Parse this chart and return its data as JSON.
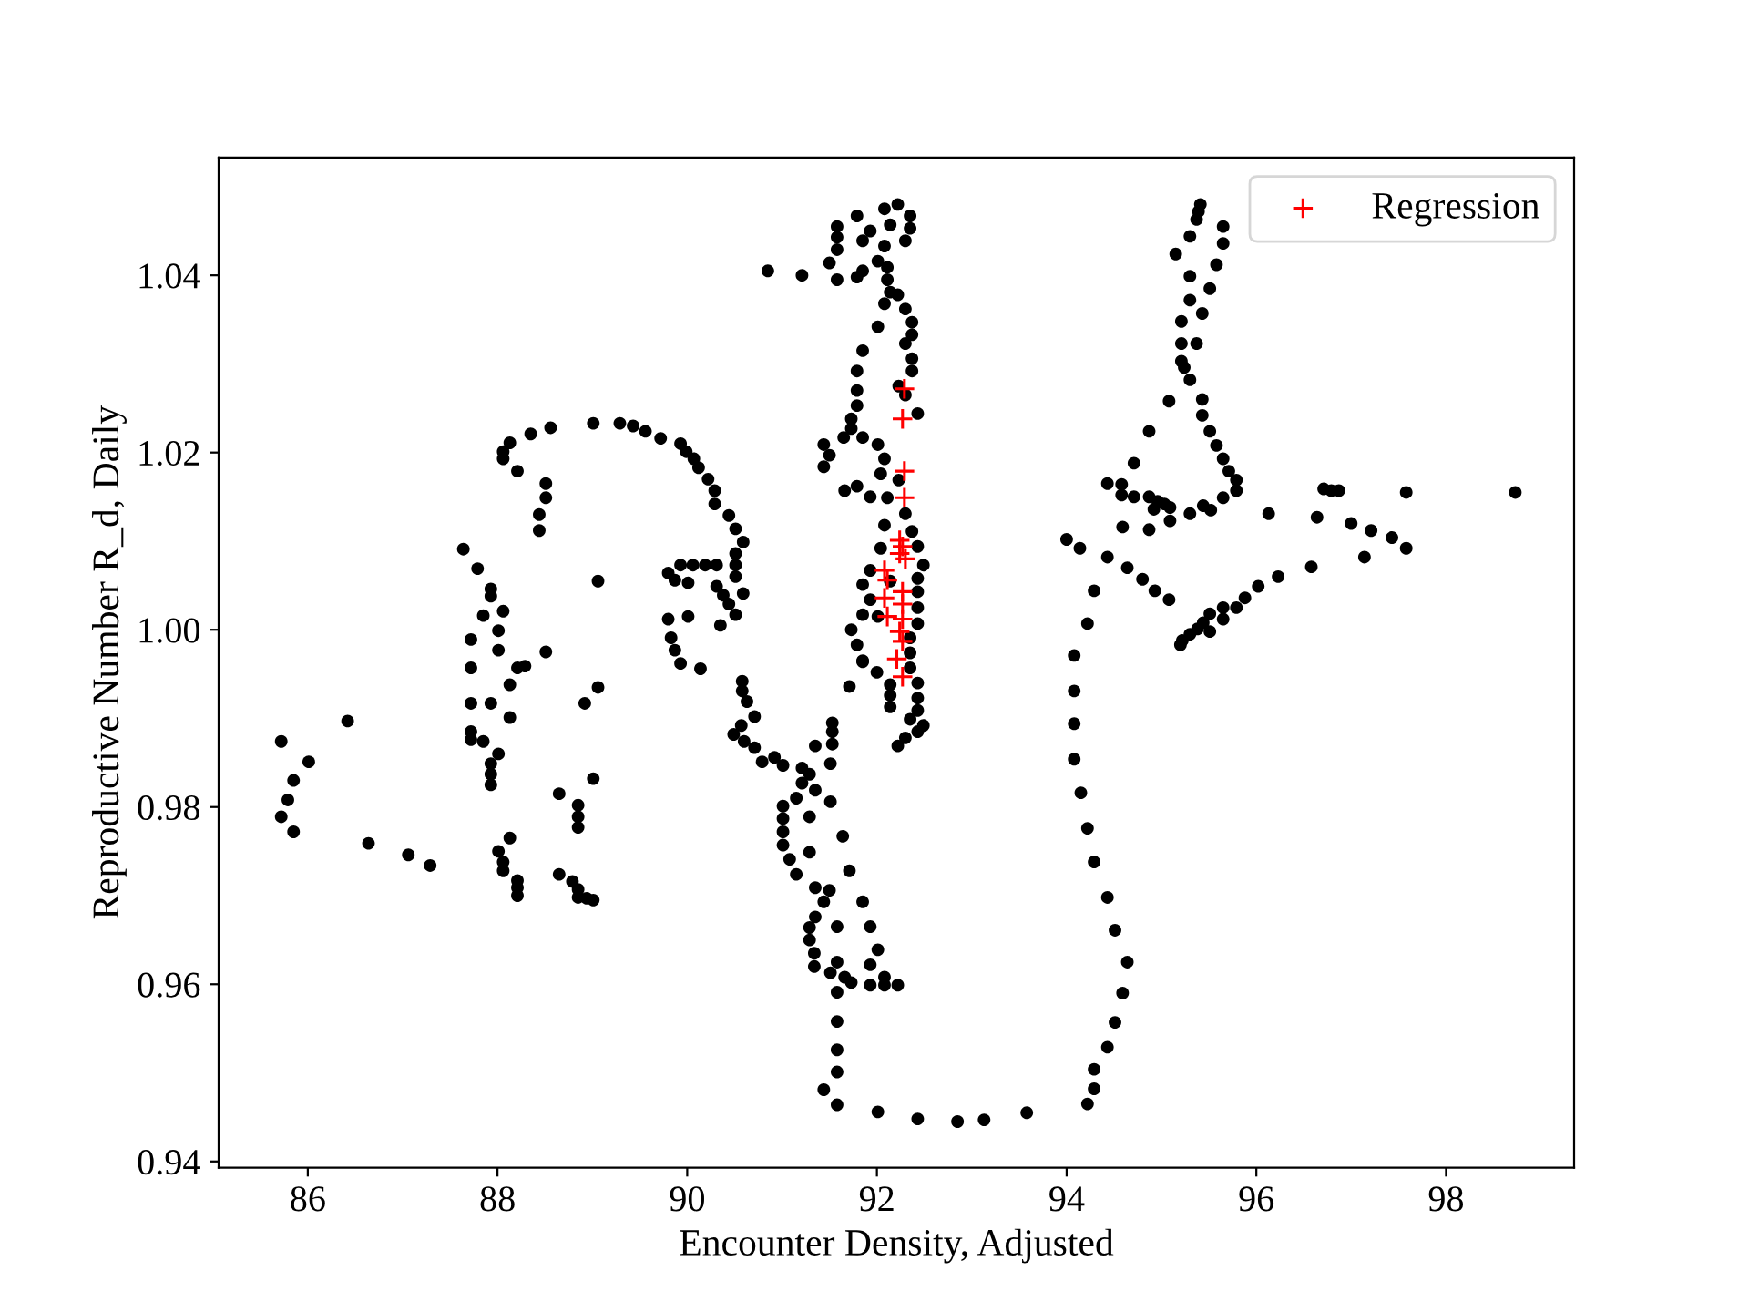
{
  "chart_data": {
    "type": "scatter",
    "xlabel": "Encounter Density, Adjusted",
    "ylabel": "Reproductive Number R_d, Daily",
    "xlim": [
      85.06,
      99.35
    ],
    "ylim": [
      0.9393,
      1.0533
    ],
    "xticks": [
      86,
      88,
      90,
      92,
      94,
      96,
      98
    ],
    "yticks": [
      0.94,
      0.96,
      0.98,
      {
        "value": 1.0,
        "label": "1.00"
      },
      1.02,
      1.04
    ],
    "legend": "top right",
    "series": [
      {
        "color": "#000000",
        "marker": "circle",
        "x": [
          87.64,
          87.79,
          87.93,
          87.93,
          87.85,
          88.06,
          88.01,
          87.72,
          88.01,
          88.51,
          87.72,
          88.21,
          88.29,
          89.06,
          88.06,
          88.06,
          88.13,
          88.21,
          88.35,
          88.56,
          89.01,
          89.29,
          89.43,
          89.56,
          89.72,
          88.51,
          88.51,
          88.44,
          88.44,
          89.8,
          89.8,
          89.83,
          89.93,
          89.99,
          90.07,
          90.12,
          90.22,
          90.29,
          90.29,
          90.44,
          90.51,
          90.59,
          90.51,
          90.51,
          90.51,
          90.59,
          89.93,
          90.06,
          90.19,
          90.31,
          89.87,
          90.01,
          90.31,
          90.38,
          90.44,
          90.51,
          90.35,
          90.01,
          89.87,
          89.93,
          90.14,
          90.58,
          90.58,
          90.63,
          90.71,
          90.57,
          90.49,
          90.6,
          90.71,
          90.79,
          90.92,
          91.01,
          91.21,
          91.29,
          91.21,
          91.35,
          91.15,
          91.01,
          91.01,
          91.01,
          91.01,
          91.08,
          91.15,
          91.35,
          91.5,
          91.44,
          91.35,
          91.29,
          91.29,
          91.34,
          91.34,
          91.51,
          91.58,
          91.66,
          91.73,
          91.58,
          91.58,
          91.58,
          91.58,
          91.44,
          91.58,
          92.01,
          92.43,
          92.85,
          93.13,
          91.53,
          91.53,
          91.53,
          91.35,
          91.51,
          91.51,
          91.29,
          91.64,
          91.29,
          91.71,
          91.85,
          91.58,
          91.93,
          92.01,
          91.93,
          91.93,
          92.08,
          92.08,
          92.22,
          91.71,
          91.85,
          92.0,
          92.14,
          92.14,
          92.14,
          92.35,
          92.43,
          92.43,
          92.43,
          92.35,
          92.49,
          92.43,
          92.3,
          92.22,
          90.85,
          91.21,
          91.58,
          91.58,
          91.58,
          91.58,
          91.5,
          91.79,
          91.93,
          91.85,
          92.08,
          92.22,
          92.35,
          92.35,
          92.3,
          92.14,
          92.08,
          92.01,
          92.11,
          91.85,
          91.79,
          92.11,
          92.14,
          92.22,
          92.08,
          92.3,
          92.37,
          92.01,
          92.37,
          91.85,
          92.3,
          92.37,
          91.79,
          92.37,
          91.79,
          92.23,
          92.3,
          92.43,
          91.79,
          91.73,
          91.73,
          91.65,
          91.85,
          92.01,
          91.44,
          91.5,
          91.44,
          92.08,
          92.04,
          92.23,
          91.66,
          91.79,
          91.93,
          92.11,
          92.3,
          92.08,
          92.37,
          92.43,
          92.04,
          92.49,
          91.93,
          92.14,
          92.43,
          91.85,
          92.43,
          91.93,
          92.43,
          91.85,
          92.01,
          92.43,
          91.73,
          92.35,
          91.79,
          92.35,
          91.85,
          95.41,
          95.39,
          95.37,
          95.65,
          95.65,
          95.3,
          95.15,
          95.58,
          95.3,
          95.51,
          95.3,
          95.43,
          95.21,
          95.21,
          95.37,
          95.21,
          95.24,
          95.3,
          95.08,
          95.43,
          95.43,
          94.87,
          95.51,
          95.58,
          95.65,
          95.71,
          95.79,
          95.79,
          95.65,
          94.71,
          94.43,
          94.58,
          94.58,
          94.71,
          94.87,
          94.96,
          95.03,
          94.92,
          95.09,
          95.44,
          95.52,
          95.3,
          95.09,
          94.87,
          94.59,
          96.13,
          96.71,
          96.79,
          96.87,
          97.58,
          98.73,
          96.64,
          97.0,
          97.21,
          97.43,
          97.58,
          97.14,
          96.58,
          96.23,
          96.02,
          95.88,
          95.79,
          95.65,
          95.65,
          95.51,
          95.44,
          95.38,
          95.3,
          95.22,
          95.2,
          95.51,
          94.0,
          94.14,
          94.43,
          94.64,
          94.8,
          94.93,
          95.08,
          94.29,
          94.22,
          94.08,
          94.08,
          94.08,
          94.08,
          94.15,
          94.22,
          94.29,
          94.43,
          94.51,
          94.64,
          94.59,
          94.51,
          94.43,
          94.29,
          94.29,
          94.22,
          93.58,
          85.72,
          86.01,
          85.85,
          85.79,
          85.72,
          85.85,
          86.42,
          86.64,
          87.06,
          87.29,
          87.72,
          87.93,
          87.72,
          87.72,
          87.85,
          88.01,
          87.93,
          87.93,
          87.93,
          88.13,
          88.13,
          88.92,
          89.06,
          89.01,
          88.65,
          88.85,
          88.85,
          88.85,
          88.13,
          88.01,
          88.06,
          88.06,
          88.21,
          88.21,
          88.21,
          88.65,
          88.79,
          88.85,
          88.85,
          88.94,
          89.01
        ],
        "values": [
          1.0091,
          1.0069,
          1.0046,
          1.0038,
          1.0016,
          1.0021,
          0.9999,
          0.9989,
          0.9977,
          0.9975,
          0.9957,
          0.9957,
          0.9959,
          1.0055,
          1.0201,
          1.0193,
          1.0211,
          1.0179,
          1.0221,
          1.0228,
          1.0233,
          1.0233,
          1.023,
          1.0224,
          1.0216,
          1.0165,
          1.0149,
          1.013,
          1.0112,
          1.0064,
          1.0012,
          0.9991,
          1.021,
          1.0201,
          1.0193,
          1.0183,
          1.017,
          1.0157,
          1.0142,
          1.0129,
          1.0114,
          1.0099,
          1.0086,
          1.0073,
          1.006,
          1.0041,
          1.0073,
          1.0073,
          1.0073,
          1.0073,
          1.0056,
          1.0053,
          1.0049,
          1.0039,
          1.0029,
          1.0017,
          1.0005,
          1.0015,
          0.9977,
          0.9962,
          0.9956,
          0.9942,
          0.9931,
          0.9919,
          0.9902,
          0.9892,
          0.9882,
          0.9874,
          0.9867,
          0.9851,
          0.9856,
          0.9847,
          0.9844,
          0.9837,
          0.9827,
          0.9819,
          0.981,
          0.9801,
          0.9787,
          0.9772,
          0.9757,
          0.9741,
          0.9724,
          0.9709,
          0.9706,
          0.9693,
          0.9676,
          0.9664,
          0.965,
          0.9635,
          0.962,
          0.9613,
          0.9625,
          0.9608,
          0.9602,
          0.9591,
          0.9558,
          0.9526,
          0.9501,
          0.9481,
          0.9464,
          0.9456,
          0.9448,
          0.9445,
          0.9447,
          0.9895,
          0.9885,
          0.9871,
          0.9869,
          0.9849,
          0.9806,
          0.9789,
          0.9767,
          0.9749,
          0.9728,
          0.9693,
          0.9665,
          0.9665,
          0.9639,
          0.9622,
          0.9599,
          0.9608,
          0.9599,
          0.9599,
          0.9936,
          0.9964,
          0.9952,
          0.9938,
          0.9926,
          0.9913,
          0.9957,
          0.994,
          0.9923,
          0.9909,
          0.9899,
          0.9892,
          0.9885,
          0.9878,
          0.9869,
          1.0405,
          1.04,
          1.0395,
          1.0455,
          1.0443,
          1.0429,
          1.0414,
          1.0467,
          1.045,
          1.0439,
          1.0475,
          1.048,
          1.0467,
          1.0453,
          1.0439,
          1.0457,
          1.0433,
          1.0416,
          1.0409,
          1.0405,
          1.0398,
          1.0395,
          1.0381,
          1.0378,
          1.0368,
          1.0362,
          1.0347,
          1.0342,
          1.0333,
          1.0315,
          1.0323,
          1.0306,
          1.0292,
          1.0292,
          1.027,
          1.0275,
          1.0265,
          1.0244,
          1.0253,
          1.0238,
          1.0227,
          1.0217,
          1.0217,
          1.0209,
          1.0209,
          1.0197,
          1.0184,
          1.0193,
          1.0176,
          1.0169,
          1.0157,
          1.0162,
          1.015,
          1.0149,
          1.0131,
          1.0118,
          1.0111,
          1.0094,
          1.0092,
          1.0073,
          1.0067,
          1.0055,
          1.0058,
          1.0051,
          1.0043,
          1.0034,
          1.0025,
          1.0017,
          1.0015,
          1.0007,
          1.0,
          0.9991,
          0.9983,
          0.9974,
          0.9965,
          1.048,
          1.0472,
          1.0463,
          1.0455,
          1.0436,
          1.0444,
          1.0424,
          1.0412,
          1.0399,
          1.0385,
          1.0372,
          1.0357,
          1.0348,
          1.0323,
          1.0323,
          1.0303,
          1.0296,
          1.0282,
          1.0258,
          1.026,
          1.0242,
          1.0224,
          1.0224,
          1.0208,
          1.0193,
          1.0179,
          1.0169,
          1.0157,
          1.0149,
          1.0188,
          1.0165,
          1.0164,
          1.0152,
          1.015,
          1.015,
          1.0145,
          1.0142,
          1.0136,
          1.0138,
          1.014,
          1.0135,
          1.0131,
          1.0123,
          1.0113,
          1.0116,
          1.0131,
          1.0159,
          1.0157,
          1.0157,
          1.0155,
          1.0155,
          1.0127,
          1.012,
          1.0112,
          1.0104,
          1.0092,
          1.0082,
          1.0071,
          1.006,
          1.0049,
          1.0036,
          1.0025,
          1.0025,
          1.0012,
          1.0018,
          1.0008,
          1.0001,
          0.9995,
          0.9988,
          0.9983,
          0.9998,
          1.0102,
          1.0092,
          1.0082,
          1.007,
          1.0057,
          1.0044,
          1.0034,
          1.0044,
          1.0007,
          0.9971,
          0.9931,
          0.9894,
          0.9854,
          0.9816,
          0.9776,
          0.9738,
          0.9698,
          0.9661,
          0.9625,
          0.959,
          0.9557,
          0.9529,
          0.9504,
          0.9482,
          0.9465,
          0.9455,
          0.9874,
          0.9851,
          0.983,
          0.9808,
          0.9789,
          0.9772,
          0.9897,
          0.9759,
          0.9746,
          0.9734,
          0.9917,
          0.9917,
          0.9885,
          0.9876,
          0.9874,
          0.986,
          0.9849,
          0.9837,
          0.9825,
          0.9938,
          0.9901,
          0.9917,
          0.9935,
          0.9832,
          0.9815,
          0.9802,
          0.9789,
          0.9777,
          0.9765,
          0.975,
          0.9738,
          0.9728,
          0.9717,
          0.9709,
          0.97,
          0.9724,
          0.9716,
          0.9707,
          0.9698,
          0.9697,
          0.9695
        ]
      },
      {
        "name": "Regression",
        "color": "#ff0000",
        "marker": "cross",
        "x": [
          92.29,
          92.27,
          92.29,
          92.29,
          92.24,
          92.27,
          92.3,
          92.24,
          92.08,
          92.11,
          92.27,
          92.08,
          92.27,
          92.11,
          92.27,
          92.24,
          92.27,
          92.21,
          92.27
        ],
        "values": [
          1.0272,
          1.0238,
          1.0179,
          1.0149,
          1.0101,
          1.0094,
          1.008,
          1.0086,
          1.0067,
          1.0056,
          1.0043,
          1.0036,
          1.0029,
          1.0015,
          1.0012,
          0.9998,
          0.9987,
          0.9967,
          0.9947
        ]
      }
    ]
  }
}
